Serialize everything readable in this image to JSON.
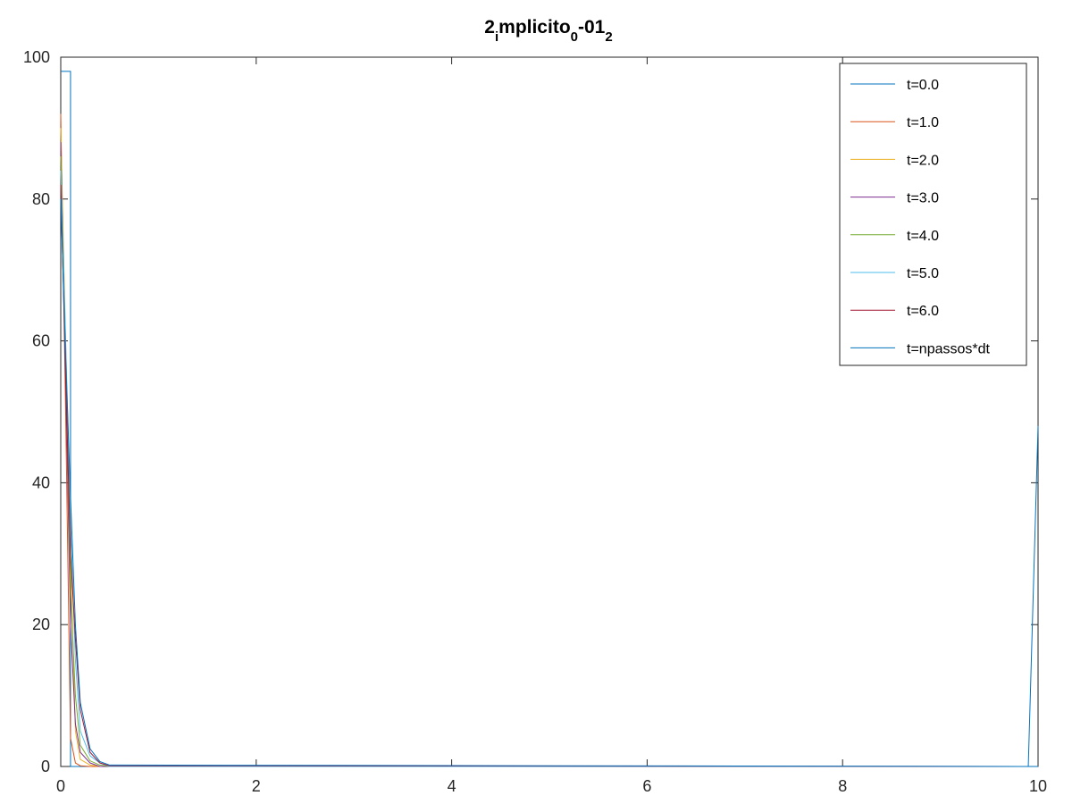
{
  "chart_data": {
    "type": "line",
    "title": {
      "parts": [
        {
          "text": "2",
          "pos": "base"
        },
        {
          "text": "i",
          "pos": "sub"
        },
        {
          "text": "mplicito",
          "pos": "base"
        },
        {
          "text": "0",
          "pos": "sub"
        },
        {
          "text": "-01",
          "pos": "base"
        },
        {
          "text": "2",
          "pos": "sub"
        }
      ]
    },
    "xlabel": "",
    "ylabel": "",
    "xlim": [
      0,
      10
    ],
    "ylim": [
      0,
      100
    ],
    "xticks": [
      0,
      2,
      4,
      6,
      8,
      10
    ],
    "yticks": [
      0,
      20,
      40,
      60,
      80,
      100
    ],
    "grid": false,
    "box": true,
    "legend_position": "top-right",
    "series": [
      {
        "name": "t=0.0",
        "color": "#0072BD",
        "x": [
          0,
          0.1,
          0.1,
          9.9,
          9.9,
          10
        ],
        "y": [
          98,
          98,
          0,
          0,
          0,
          48
        ]
      },
      {
        "name": "t=1.0",
        "color": "#D95319",
        "x": [
          0,
          0.05,
          0.1,
          0.15,
          0.2,
          0.3,
          0.4,
          10
        ],
        "y": [
          92,
          50,
          4,
          0.5,
          0.1,
          0,
          0,
          0
        ]
      },
      {
        "name": "t=2.0",
        "color": "#EDB120",
        "x": [
          0,
          0.05,
          0.1,
          0.15,
          0.2,
          0.3,
          0.4,
          10
        ],
        "y": [
          90,
          60,
          30,
          5,
          1,
          0.2,
          0,
          0
        ]
      },
      {
        "name": "t=3.0",
        "color": "#7E2F8E",
        "x": [
          0,
          0.05,
          0.1,
          0.15,
          0.2,
          0.3,
          0.4,
          10
        ],
        "y": [
          88,
          55,
          20,
          6,
          2,
          0.5,
          0,
          0
        ]
      },
      {
        "name": "t=4.0",
        "color": "#77AC30",
        "x": [
          0,
          0.05,
          0.1,
          0.15,
          0.2,
          0.3,
          0.4,
          0.5,
          10
        ],
        "y": [
          86,
          58,
          25,
          10,
          3,
          0.8,
          0.2,
          0,
          0
        ]
      },
      {
        "name": "t=5.0",
        "color": "#4DBEEE",
        "x": [
          0,
          0.05,
          0.1,
          0.15,
          0.2,
          0.3,
          0.4,
          0.5,
          10
        ],
        "y": [
          84,
          60,
          35,
          15,
          5,
          1.5,
          0.5,
          0,
          0
        ]
      },
      {
        "name": "t=6.0",
        "color": "#A2142F",
        "x": [
          0,
          0.05,
          0.1,
          0.15,
          0.2,
          0.3,
          0.4,
          0.5,
          10
        ],
        "y": [
          82,
          55,
          30,
          18,
          8,
          2,
          0.5,
          0.1,
          0
        ]
      },
      {
        "name": "t=npassos*dt",
        "color": "#0072BD",
        "x": [
          0,
          0.05,
          0.1,
          0.15,
          0.2,
          0.3,
          0.4,
          0.5,
          10
        ],
        "y": [
          80,
          58,
          38,
          20,
          9,
          2.5,
          0.7,
          0.2,
          0
        ]
      }
    ]
  }
}
